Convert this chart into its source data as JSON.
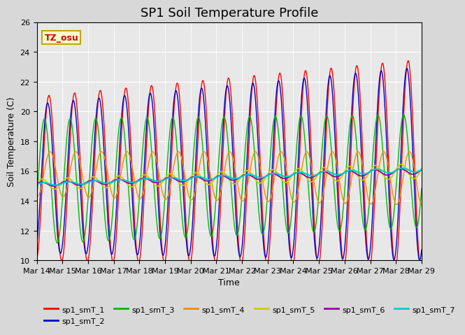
{
  "title": "SP1 Soil Temperature Profile",
  "xlabel": "Time",
  "ylabel": "Soil Temperature (C)",
  "annotation": "TZ_osu",
  "ylim": [
    10,
    26
  ],
  "xlim": [
    0,
    15
  ],
  "x_tick_labels": [
    "Mar 14",
    "Mar 15",
    "Mar 16",
    "Mar 17",
    "Mar 18",
    "Mar 19",
    "Mar 20",
    "Mar 21",
    "Mar 22",
    "Mar 23",
    "Mar 24",
    "Mar 25",
    "Mar 26",
    "Mar 27",
    "Mar 28",
    "Mar 29"
  ],
  "series_colors": [
    "#ff0000",
    "#0000cc",
    "#00bb00",
    "#ff8800",
    "#cccc00",
    "#9900aa",
    "#00cccc"
  ],
  "series_labels": [
    "sp1_smT_1",
    "sp1_smT_2",
    "sp1_smT_3",
    "sp1_smT_4",
    "sp1_smT_5",
    "sp1_smT_6",
    "sp1_smT_7"
  ],
  "bg_color": "#e8e8e8",
  "title_fontsize": 13,
  "axis_label_fontsize": 9,
  "tick_fontsize": 8
}
